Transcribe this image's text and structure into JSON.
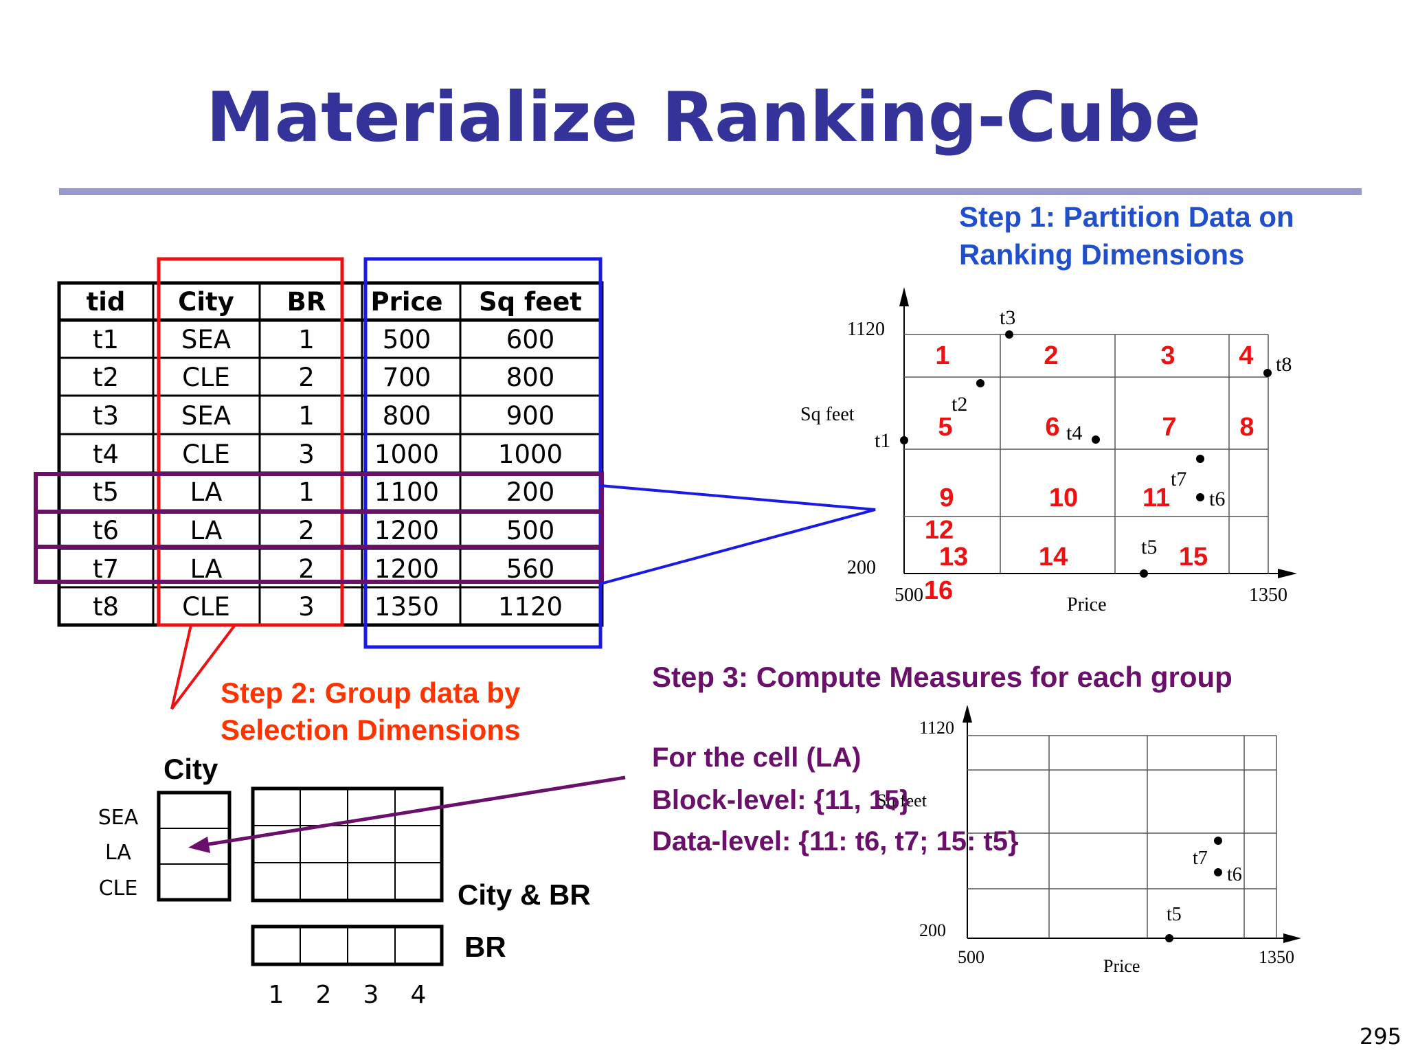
{
  "slide": {
    "title": "Materialize Ranking-Cube",
    "page_number": "295"
  },
  "table": {
    "headers": [
      "tid",
      "City",
      "BR",
      "Price",
      "Sq feet"
    ],
    "rows": [
      [
        "t1",
        "SEA",
        "1",
        "500",
        "600"
      ],
      [
        "t2",
        "CLE",
        "2",
        "700",
        "800"
      ],
      [
        "t3",
        "SEA",
        "1",
        "800",
        "900"
      ],
      [
        "t4",
        "CLE",
        "3",
        "1000",
        "1000"
      ],
      [
        "t5",
        "LA",
        "1",
        "1100",
        "200"
      ],
      [
        "t6",
        "LA",
        "2",
        "1200",
        "500"
      ],
      [
        "t7",
        "LA",
        "2",
        "1200",
        "560"
      ],
      [
        "t8",
        "CLE",
        "3",
        "1350",
        "1120"
      ]
    ]
  },
  "step1": {
    "line1": "Step 1: Partition Data on",
    "line2": "Ranking Dimensions"
  },
  "step2": {
    "line1": "Step 2: Group data by",
    "line2": "Selection Dimensions"
  },
  "step3": {
    "heading": "Step 3: Compute Measures for each group",
    "cell": "For the cell (LA)",
    "block_level": "Block-level: {11, 15}",
    "data_level": "Data-level: {11: t6, t7; 15: t5}"
  },
  "plot1": {
    "xlabel": "Price",
    "ylabel": "Sq feet",
    "x_min_label": "500",
    "x_max_label": "1350",
    "y_min_label": "200",
    "y_max_label": "1120",
    "blocks": [
      "1",
      "2",
      "3",
      "4",
      "5",
      "6",
      "7",
      "8",
      "9",
      "10",
      "11",
      "12",
      "13",
      "14",
      "15",
      "16"
    ],
    "points": [
      {
        "label": "t1"
      },
      {
        "label": "t2"
      },
      {
        "label": "t3"
      },
      {
        "label": "t4"
      },
      {
        "label": "t5"
      },
      {
        "label": "t6"
      },
      {
        "label": "t7"
      },
      {
        "label": "t8"
      }
    ]
  },
  "plot2": {
    "xlabel": "Price",
    "ylabel": "Sq feet",
    "x_min_label": "500",
    "x_max_label": "1350",
    "y_min_label": "200",
    "y_max_label": "1120",
    "points": [
      {
        "label": "t5"
      },
      {
        "label": "t6"
      },
      {
        "label": "t7"
      }
    ]
  },
  "cube": {
    "city_label": "City",
    "city_values": [
      "SEA",
      "LA",
      "CLE"
    ],
    "city_br_label": "City & BR",
    "br_label": "BR",
    "br_values": [
      "1",
      "2",
      "3",
      "4"
    ]
  },
  "colors": {
    "title": "#333399",
    "red": "#ee1111",
    "blue": "#1a1ae6",
    "purple": "#6a0f6a",
    "orange": "#ff3300",
    "step1": "#1f4fcc"
  }
}
